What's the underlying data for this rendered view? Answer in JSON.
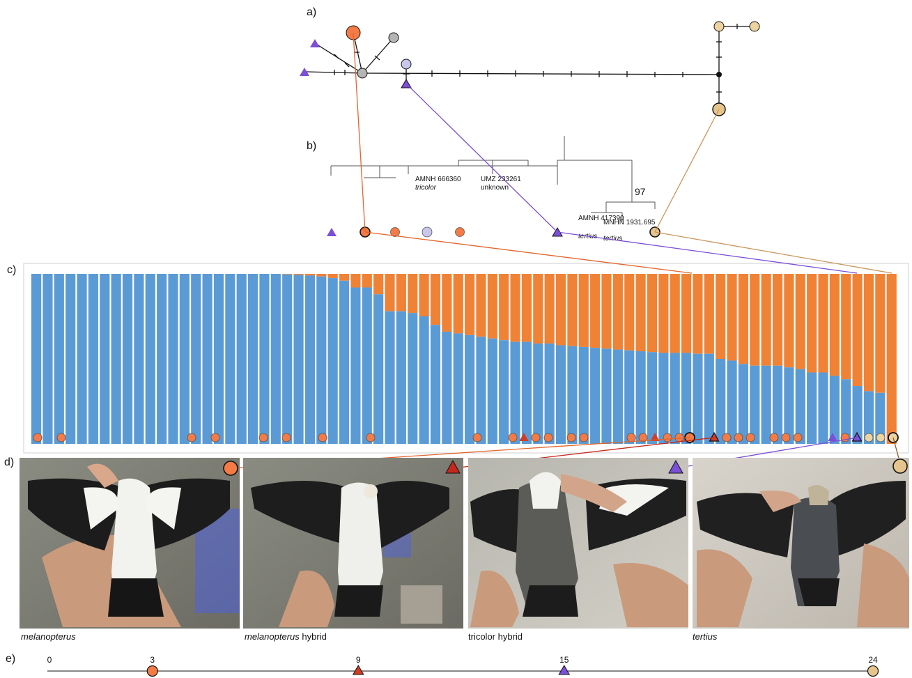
{
  "panel_labels": [
    "a)",
    "b)",
    "c)",
    "d)",
    "e)"
  ],
  "colors": {
    "melanopterus": "#f47b45",
    "tricolor_ancestry": "#5b9bd5",
    "admixed_orange": "#f08236",
    "tertius": "#ecd3a0",
    "hybrid_triangle_red": "#d13d24",
    "hybrid_triangle_purple": "#7b4fd6",
    "haplotype_grey": "#b5b5b5",
    "haplotype_lavender": "#c9c6ee",
    "tan_node": "#e6c58c"
  },
  "tree": {
    "tips": [
      {
        "id": "AMNH 666360",
        "name": "tricolor"
      },
      {
        "id": "UMZ 233261",
        "name": "unknown"
      },
      {
        "id": "AMNH 417390",
        "name": "tertius"
      },
      {
        "id": "MNHN 1931.695",
        "name": "tertius"
      }
    ],
    "bootstrap": "97"
  },
  "chart_data": {
    "type": "bar",
    "title": "",
    "xlabel": "",
    "ylabel": "",
    "ylim": [
      0,
      1
    ],
    "series": [
      {
        "name": "",
        "values": [
          1,
          1,
          1,
          1,
          1,
          1,
          1,
          1,
          1,
          1,
          1,
          1,
          1,
          1,
          1,
          1,
          1,
          1,
          1,
          1,
          1,
          1,
          1,
          1,
          1,
          1,
          1,
          1,
          1,
          1,
          1,
          1,
          1,
          1,
          1,
          1,
          1,
          1,
          1,
          1,
          1,
          1,
          1,
          1,
          1,
          1,
          1,
          1,
          1,
          1,
          1,
          1,
          1,
          1,
          1,
          1,
          1,
          1,
          1,
          1,
          1,
          1,
          1,
          1,
          1,
          1,
          1,
          1,
          1,
          1,
          1,
          1,
          1,
          1,
          1,
          1
        ]
      },
      {
        "name": "",
        "values": [
          1,
          1,
          1,
          1,
          1,
          1,
          1,
          1,
          1,
          1,
          1,
          1,
          1,
          1,
          1,
          1,
          1,
          1,
          1,
          1,
          1,
          1,
          0.997,
          0.994,
          0.99,
          0.985,
          0.975,
          0.96,
          0.92,
          0.92,
          0.88,
          0.78,
          0.78,
          0.77,
          0.75,
          0.7,
          0.66,
          0.65,
          0.64,
          0.63,
          0.62,
          0.61,
          0.6,
          0.6,
          0.59,
          0.59,
          0.58,
          0.575,
          0.57,
          0.565,
          0.56,
          0.555,
          0.55,
          0.545,
          0.54,
          0.535,
          0.535,
          0.535,
          0.53,
          0.53,
          0.5,
          0.49,
          0.47,
          0.46,
          0.46,
          0.46,
          0.45,
          0.44,
          0.42,
          0.42,
          0.4,
          0.38,
          0.34,
          0.31,
          0.3,
          0
        ]
      }
    ],
    "tertius_bars": 3
  },
  "photos": [
    {
      "caption_italic": "melanopterus",
      "caption_rest": ""
    },
    {
      "caption_italic": "melanopterus",
      "caption_rest": " hybrid"
    },
    {
      "caption_italic": "",
      "caption_rest": "tricolor hybrid"
    },
    {
      "caption_italic": "tertius",
      "caption_rest": ""
    }
  ],
  "axis_e": {
    "ticks": [
      "0",
      "3",
      "9",
      "15",
      "24"
    ],
    "values": [
      0,
      3,
      9,
      15,
      24
    ],
    "max": 24
  }
}
